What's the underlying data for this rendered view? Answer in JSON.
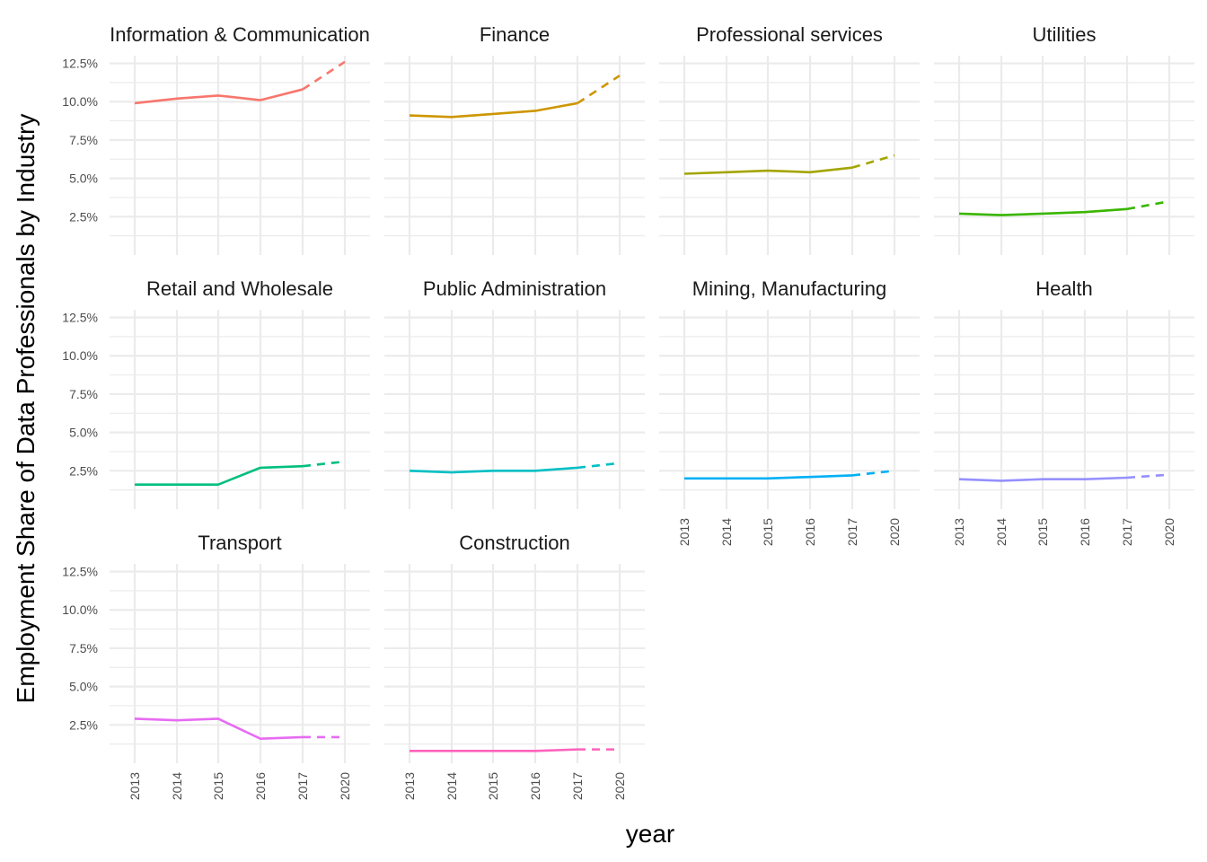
{
  "chart_data": {
    "type": "line",
    "xlabel": "year",
    "ylabel": "Employment Share of Data Professionals by Industry",
    "x_ticks": [
      "2013",
      "2014",
      "2015",
      "2016",
      "2017",
      "2020"
    ],
    "y_ticks": [
      "2.5%",
      "5.0%",
      "7.5%",
      "10.0%",
      "12.5%"
    ],
    "y_tick_values": [
      2.5,
      5.0,
      7.5,
      10.0,
      12.5
    ],
    "ylim": [
      0,
      13
    ],
    "grid": true,
    "legend": "none",
    "solid_segment": "2013-2017 observed",
    "dashed_segment": "2017-2020 projection",
    "panels": [
      {
        "name": "Information & Communication",
        "color": "#F8766D",
        "values": [
          9.9,
          10.2,
          10.4,
          10.1,
          10.8,
          12.6
        ]
      },
      {
        "name": "Finance",
        "color": "#CD9600",
        "values": [
          9.1,
          9.0,
          9.2,
          9.4,
          9.9,
          11.7
        ]
      },
      {
        "name": "Professional services",
        "color": "#A3A500",
        "values": [
          5.3,
          5.4,
          5.5,
          5.4,
          5.7,
          6.5
        ]
      },
      {
        "name": "Utilities",
        "color": "#39B600",
        "values": [
          2.7,
          2.6,
          2.7,
          2.8,
          3.0,
          3.5
        ]
      },
      {
        "name": "Retail and Wholesale",
        "color": "#00BF7D",
        "values": [
          1.6,
          1.6,
          1.6,
          2.7,
          2.8,
          3.1
        ]
      },
      {
        "name": "Public Administration",
        "color": "#00BFC4",
        "values": [
          2.5,
          2.4,
          2.5,
          2.5,
          2.7,
          3.0
        ]
      },
      {
        "name": "Mining, Manufacturing",
        "color": "#00B0F6",
        "values": [
          2.0,
          2.0,
          2.0,
          2.1,
          2.2,
          2.5
        ]
      },
      {
        "name": "Health",
        "color": "#9590FF",
        "values": [
          1.95,
          1.85,
          1.95,
          1.95,
          2.05,
          2.25
        ]
      },
      {
        "name": "Transport",
        "color": "#E76BF3",
        "values": [
          2.9,
          2.8,
          2.9,
          1.6,
          1.7,
          1.7
        ]
      },
      {
        "name": "Construction",
        "color": "#FF62BC",
        "values": [
          0.8,
          0.8,
          0.8,
          0.8,
          0.9,
          0.9
        ]
      }
    ]
  }
}
